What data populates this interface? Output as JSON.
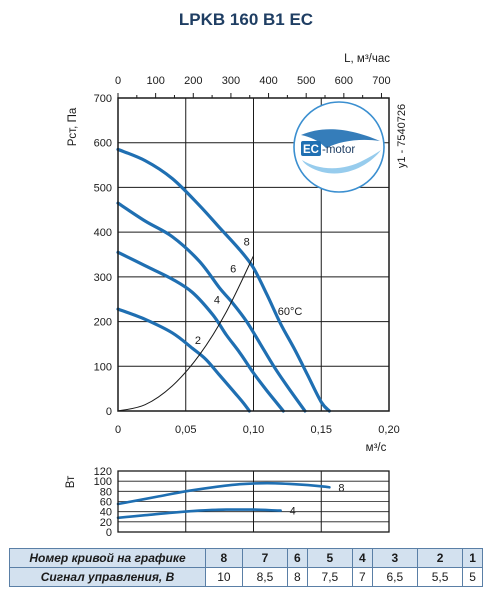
{
  "title": "LPKB 160 B1 EC",
  "colors": {
    "curve": "#1f6fb2",
    "table_header_bg": "#d3e1ef",
    "title": "#1f3e63"
  },
  "top_axis": {
    "label": "L, м³/час",
    "ticks": [
      "0",
      "100",
      "200",
      "300",
      "400",
      "500",
      "600",
      "700"
    ]
  },
  "chart_data": [
    {
      "type": "line",
      "title": "LPKB 160 B1 EC",
      "xlabel": "м³/с",
      "ylabel": "Рст, Па",
      "xlim": [
        0,
        0.2
      ],
      "ylim": [
        0,
        700
      ],
      "x_ticks": [
        "0",
        "0,05",
        "0,10",
        "0,15",
        "0,20"
      ],
      "y_ticks": [
        "0",
        "100",
        "200",
        "300",
        "400",
        "500",
        "600",
        "700"
      ],
      "grid": true,
      "series": [
        {
          "name": "8",
          "x": [
            0,
            0.02,
            0.04,
            0.06,
            0.075,
            0.09,
            0.1,
            0.11,
            0.12,
            0.13,
            0.14,
            0.15,
            0.156
          ],
          "y": [
            585,
            560,
            520,
            460,
            410,
            360,
            320,
            260,
            195,
            140,
            80,
            20,
            0
          ]
        },
        {
          "name": "6",
          "x": [
            0,
            0.02,
            0.04,
            0.06,
            0.075,
            0.085,
            0.095,
            0.105,
            0.115,
            0.125,
            0.138
          ],
          "y": [
            465,
            425,
            390,
            335,
            275,
            240,
            200,
            150,
            100,
            55,
            0
          ]
        },
        {
          "name": "4",
          "x": [
            0,
            0.02,
            0.04,
            0.055,
            0.07,
            0.08,
            0.09,
            0.1,
            0.11,
            0.122
          ],
          "y": [
            355,
            325,
            295,
            265,
            215,
            170,
            130,
            85,
            45,
            0
          ]
        },
        {
          "name": "2",
          "x": [
            0,
            0.02,
            0.04,
            0.055,
            0.065,
            0.075,
            0.085,
            0.092,
            0.097
          ],
          "y": [
            228,
            205,
            175,
            140,
            115,
            80,
            45,
            20,
            0
          ]
        },
        {
          "name": "system",
          "x": [
            0,
            0.02,
            0.04,
            0.06,
            0.08,
            0.1
          ],
          "y": [
            0,
            14,
            56,
            125,
            222,
            347
          ]
        }
      ],
      "annotations": [
        {
          "text": "8",
          "x": 0.095,
          "y": 370
        },
        {
          "text": "6",
          "x": 0.085,
          "y": 310
        },
        {
          "text": "4",
          "x": 0.073,
          "y": 240
        },
        {
          "text": "2",
          "x": 0.059,
          "y": 150
        },
        {
          "text": "60°C",
          "x": 0.127,
          "y": 215
        }
      ],
      "side_label": "y1 - 7540726",
      "badge": "EC-motor"
    },
    {
      "type": "line",
      "ylabel": "Вт",
      "ylim": [
        0,
        120
      ],
      "y_ticks": [
        "0",
        "20",
        "40",
        "60",
        "80",
        "100",
        "120"
      ],
      "grid": true,
      "series": [
        {
          "name": "8",
          "x": [
            0,
            0.03,
            0.05,
            0.07,
            0.09,
            0.11,
            0.13,
            0.15,
            0.156
          ],
          "y": [
            55,
            70,
            80,
            88,
            94,
            96,
            94,
            90,
            88
          ]
        },
        {
          "name": "4",
          "x": [
            0,
            0.02,
            0.04,
            0.06,
            0.08,
            0.1,
            0.12
          ],
          "y": [
            28,
            33,
            38,
            42,
            44,
            44,
            42
          ]
        }
      ]
    }
  ],
  "table": {
    "row1_label": "Номер кривой на графике",
    "row2_label": "Сигнал управления, В",
    "curves": [
      "8",
      "7",
      "6",
      "5",
      "4",
      "3",
      "2",
      "1"
    ],
    "signals": [
      "10",
      "8,5",
      "8",
      "7,5",
      "7",
      "6,5",
      "5,5",
      "5"
    ]
  }
}
